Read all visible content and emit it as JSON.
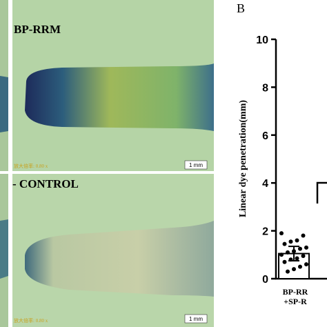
{
  "photos": [
    {
      "label": "BP-RRM",
      "magnification": "放大倍率: 0.80 x",
      "scale": "1 mm"
    },
    {
      "label": "- CONTROL",
      "magnification": "放大倍率: 0.80 x",
      "scale": "1 mm"
    }
  ],
  "chart_data": {
    "type": "bar",
    "panel_label": "B",
    "y_label": "Linear dye penetration(mm)",
    "categories": [
      "BP-RR\n+SP-R"
    ],
    "values": [
      1.05
    ],
    "errors": [
      0.3
    ],
    "color": "#ffffff",
    "points": [
      [
        1.9,
        1.8,
        1.6,
        1.55,
        1.45,
        1.3,
        1.25,
        1.15,
        1.1,
        1.0,
        0.95,
        0.85,
        0.8,
        0.7,
        0.6,
        0.5,
        0.4,
        0.3
      ]
    ],
    "ylim": [
      0,
      10
    ],
    "yticks": [
      0,
      2,
      4,
      6,
      8,
      10
    ]
  }
}
